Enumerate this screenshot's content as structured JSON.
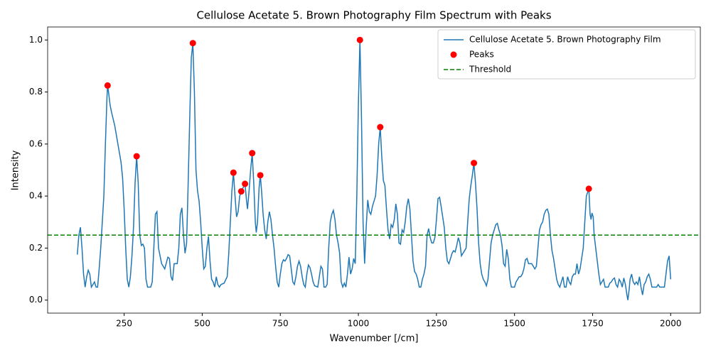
{
  "chart_data": {
    "type": "line",
    "title": "Cellulose Acetate 5. Brown Photography Film Spectrum with Peaks",
    "x_label": "Wavenumber [/cm]",
    "y_label": "Intensity",
    "xlim": [
      5,
      2095
    ],
    "ylim": [
      -0.05,
      1.05
    ],
    "xticks": [
      250,
      500,
      750,
      1000,
      1250,
      1500,
      1750,
      2000
    ],
    "yticks": [
      {
        "value": 0,
        "label": "0.0"
      },
      0.2,
      0.4,
      0.6,
      0.8,
      {
        "value": 1,
        "label": "1.0"
      }
    ],
    "legend": "upper right",
    "series": [
      {
        "name": "Cellulose Acetate 5. Brown Photography Film",
        "type": "line",
        "color": "#1f77b4",
        "x": [
          100,
          105,
          110,
          115,
          120,
          125,
          130,
          135,
          140,
          145,
          150,
          155,
          160,
          165,
          170,
          175,
          180,
          185,
          190,
          195,
          197,
          200,
          205,
          210,
          220,
          230,
          240,
          245,
          250,
          255,
          260,
          265,
          270,
          275,
          280,
          285,
          290,
          295,
          300,
          305,
          310,
          315,
          320,
          325,
          335,
          340,
          345,
          350,
          355,
          360,
          370,
          380,
          390,
          395,
          400,
          405,
          410,
          420,
          425,
          430,
          435,
          440,
          445,
          450,
          455,
          460,
          465,
          470,
          475,
          480,
          485,
          490,
          495,
          500,
          505,
          510,
          515,
          520,
          525,
          530,
          535,
          540,
          545,
          550,
          555,
          560,
          570,
          580,
          585,
          590,
          595,
          600,
          605,
          610,
          615,
          620,
          625,
          630,
          637,
          642,
          645,
          650,
          655,
          660,
          665,
          670,
          673,
          677,
          682,
          686,
          690,
          695,
          700,
          705,
          710,
          715,
          720,
          725,
          730,
          735,
          740,
          745,
          750,
          755,
          760,
          765,
          770,
          775,
          780,
          785,
          790,
          795,
          800,
          805,
          810,
          815,
          820,
          825,
          830,
          835,
          840,
          845,
          850,
          855,
          860,
          870,
          875,
          880,
          885,
          890,
          895,
          900,
          905,
          910,
          915,
          920,
          925,
          930,
          935,
          940,
          945,
          950,
          955,
          960,
          965,
          970,
          975,
          980,
          985,
          990,
          995,
          1000,
          1005,
          1010,
          1015,
          1020,
          1025,
          1030,
          1035,
          1040,
          1045,
          1050,
          1055,
          1060,
          1065,
          1070,
          1075,
          1080,
          1085,
          1090,
          1095,
          1100,
          1105,
          1110,
          1115,
          1120,
          1125,
          1130,
          1135,
          1140,
          1145,
          1150,
          1155,
          1160,
          1165,
          1170,
          1175,
          1180,
          1185,
          1190,
          1195,
          1200,
          1205,
          1210,
          1215,
          1220,
          1225,
          1230,
          1235,
          1240,
          1245,
          1250,
          1255,
          1260,
          1265,
          1270,
          1275,
          1280,
          1285,
          1290,
          1295,
          1300,
          1305,
          1310,
          1315,
          1320,
          1325,
          1330,
          1335,
          1340,
          1345,
          1350,
          1355,
          1360,
          1365,
          1370,
          1375,
          1380,
          1385,
          1390,
          1395,
          1400,
          1405,
          1410,
          1415,
          1420,
          1425,
          1430,
          1435,
          1440,
          1445,
          1450,
          1455,
          1460,
          1465,
          1470,
          1475,
          1480,
          1485,
          1490,
          1500,
          1505,
          1510,
          1515,
          1520,
          1525,
          1530,
          1535,
          1540,
          1545,
          1550,
          1555,
          1560,
          1565,
          1570,
          1575,
          1580,
          1585,
          1590,
          1595,
          1600,
          1605,
          1610,
          1615,
          1620,
          1625,
          1630,
          1635,
          1640,
          1645,
          1650,
          1655,
          1660,
          1665,
          1670,
          1675,
          1680,
          1685,
          1690,
          1695,
          1700,
          1705,
          1710,
          1715,
          1720,
          1725,
          1730,
          1738,
          1742,
          1745,
          1748,
          1752,
          1755,
          1760,
          1765,
          1770,
          1775,
          1780,
          1785,
          1790,
          1800,
          1805,
          1810,
          1815,
          1820,
          1825,
          1830,
          1835,
          1840,
          1845,
          1850,
          1855,
          1860,
          1863,
          1867,
          1870,
          1875,
          1880,
          1885,
          1890,
          1895,
          1900,
          1905,
          1910,
          1915,
          1920,
          1925,
          1930,
          1935,
          1940,
          1950,
          1955,
          1960,
          1965,
          1970,
          1980,
          1985,
          1990,
          1995,
          2000
        ],
        "values": [
          0.175,
          0.25,
          0.28,
          0.2,
          0.1,
          0.05,
          0.09,
          0.115,
          0.1,
          0.05,
          0.06,
          0.07,
          0.05,
          0.05,
          0.12,
          0.2,
          0.3,
          0.4,
          0.6,
          0.78,
          0.825,
          0.8,
          0.75,
          0.72,
          0.67,
          0.6,
          0.53,
          0.47,
          0.35,
          0.2,
          0.08,
          0.05,
          0.09,
          0.17,
          0.28,
          0.45,
          0.553,
          0.45,
          0.25,
          0.21,
          0.215,
          0.2,
          0.08,
          0.05,
          0.05,
          0.07,
          0.2,
          0.33,
          0.34,
          0.2,
          0.14,
          0.12,
          0.165,
          0.16,
          0.09,
          0.075,
          0.14,
          0.14,
          0.2,
          0.33,
          0.355,
          0.25,
          0.18,
          0.22,
          0.45,
          0.7,
          0.93,
          0.988,
          0.8,
          0.5,
          0.42,
          0.38,
          0.3,
          0.2,
          0.12,
          0.13,
          0.2,
          0.245,
          0.15,
          0.08,
          0.07,
          0.05,
          0.09,
          0.06,
          0.05,
          0.06,
          0.065,
          0.09,
          0.18,
          0.3,
          0.42,
          0.49,
          0.4,
          0.32,
          0.34,
          0.4,
          0.418,
          0.43,
          0.447,
          0.38,
          0.35,
          0.42,
          0.5,
          0.565,
          0.45,
          0.3,
          0.26,
          0.3,
          0.43,
          0.48,
          0.42,
          0.33,
          0.27,
          0.235,
          0.3,
          0.34,
          0.31,
          0.25,
          0.2,
          0.13,
          0.07,
          0.05,
          0.1,
          0.14,
          0.155,
          0.15,
          0.16,
          0.175,
          0.17,
          0.12,
          0.07,
          0.06,
          0.09,
          0.13,
          0.15,
          0.13,
          0.09,
          0.06,
          0.05,
          0.1,
          0.135,
          0.125,
          0.1,
          0.07,
          0.055,
          0.05,
          0.09,
          0.13,
          0.12,
          0.05,
          0.05,
          0.06,
          0.2,
          0.3,
          0.33,
          0.345,
          0.31,
          0.25,
          0.22,
          0.18,
          0.07,
          0.05,
          0.065,
          0.05,
          0.1,
          0.165,
          0.1,
          0.12,
          0.16,
          0.14,
          0.4,
          0.75,
          1.0,
          0.7,
          0.3,
          0.14,
          0.28,
          0.385,
          0.34,
          0.33,
          0.36,
          0.38,
          0.4,
          0.48,
          0.6,
          0.665,
          0.55,
          0.46,
          0.44,
          0.35,
          0.27,
          0.235,
          0.29,
          0.28,
          0.31,
          0.37,
          0.33,
          0.22,
          0.215,
          0.27,
          0.26,
          0.3,
          0.36,
          0.39,
          0.35,
          0.25,
          0.15,
          0.11,
          0.1,
          0.08,
          0.05,
          0.05,
          0.08,
          0.1,
          0.13,
          0.25,
          0.275,
          0.24,
          0.22,
          0.22,
          0.24,
          0.31,
          0.39,
          0.395,
          0.36,
          0.32,
          0.28,
          0.2,
          0.15,
          0.14,
          0.16,
          0.18,
          0.19,
          0.185,
          0.21,
          0.24,
          0.22,
          0.17,
          0.18,
          0.19,
          0.2,
          0.3,
          0.39,
          0.44,
          0.48,
          0.527,
          0.45,
          0.35,
          0.22,
          0.14,
          0.1,
          0.08,
          0.07,
          0.055,
          0.08,
          0.15,
          0.22,
          0.25,
          0.27,
          0.29,
          0.295,
          0.27,
          0.25,
          0.21,
          0.14,
          0.13,
          0.195,
          0.16,
          0.08,
          0.05,
          0.05,
          0.07,
          0.08,
          0.09,
          0.09,
          0.1,
          0.12,
          0.155,
          0.16,
          0.14,
          0.14,
          0.14,
          0.13,
          0.12,
          0.13,
          0.2,
          0.27,
          0.29,
          0.3,
          0.33,
          0.345,
          0.35,
          0.33,
          0.25,
          0.19,
          0.16,
          0.12,
          0.08,
          0.06,
          0.05,
          0.07,
          0.09,
          0.05,
          0.05,
          0.09,
          0.07,
          0.06,
          0.09,
          0.1,
          0.1,
          0.14,
          0.1,
          0.12,
          0.16,
          0.2,
          0.3,
          0.4,
          0.428,
          0.33,
          0.31,
          0.335,
          0.32,
          0.25,
          0.2,
          0.15,
          0.1,
          0.06,
          0.07,
          0.08,
          0.05,
          0.05,
          0.065,
          0.07,
          0.08,
          0.085,
          0.06,
          0.05,
          0.08,
          0.07,
          0.05,
          0.085,
          0.06,
          0.02,
          0.0,
          0.04,
          0.08,
          0.1,
          0.07,
          0.06,
          0.07,
          0.06,
          0.09,
          0.05,
          0.02,
          0.06,
          0.07,
          0.09,
          0.1,
          0.08,
          0.05,
          0.05,
          0.05,
          0.06,
          0.05,
          0.05,
          0.05,
          0.1,
          0.15,
          0.17,
          0.08
        ]
      },
      {
        "name": "Peaks",
        "type": "scatter",
        "color": "#ff0000",
        "x": [
          197,
          290,
          470,
          600,
          625,
          637,
          660,
          686,
          1005,
          1070,
          1370,
          1738
        ],
        "values": [
          0.825,
          0.553,
          0.988,
          0.49,
          0.418,
          0.447,
          0.565,
          0.48,
          1.0,
          0.665,
          0.527,
          0.428
        ]
      },
      {
        "name": "Threshold",
        "type": "hline",
        "color": "#008000",
        "style": "dashed",
        "values": [
          0.25
        ]
      }
    ]
  }
}
